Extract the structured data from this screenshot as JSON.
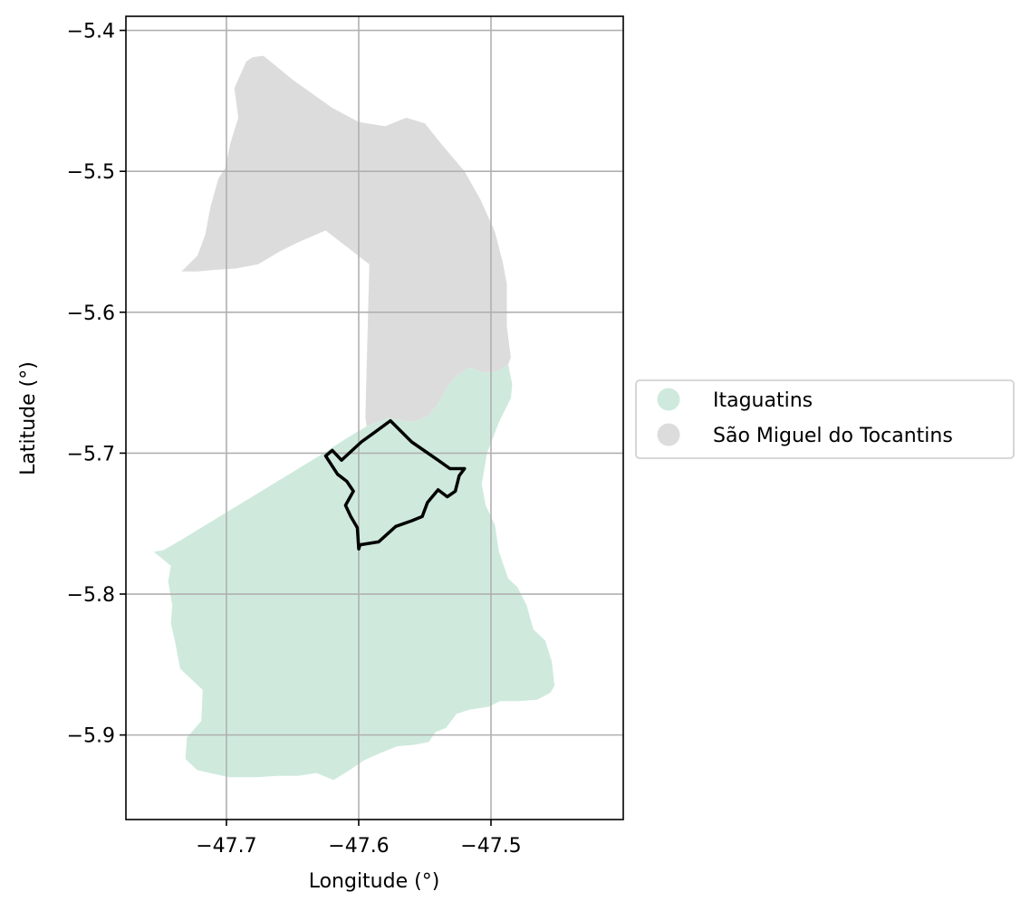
{
  "map": {
    "xlabel": "Longitude (°)",
    "ylabel": "Latitude (°)",
    "xlim": [
      -47.776,
      -47.4
    ],
    "ylim": [
      -5.96,
      -5.39
    ],
    "grid": true,
    "x_ticks": [
      {
        "value": -47.7,
        "label": "−47.7"
      },
      {
        "value": -47.6,
        "label": "−47.6"
      },
      {
        "value": -47.5,
        "label": "−47.5"
      }
    ],
    "y_ticks": [
      {
        "value": -5.4,
        "label": "−5.4"
      },
      {
        "value": -5.5,
        "label": "−5.5"
      },
      {
        "value": -5.6,
        "label": "−5.6"
      },
      {
        "value": -5.7,
        "label": "−5.7"
      },
      {
        "value": -5.8,
        "label": "−5.8"
      },
      {
        "value": -5.9,
        "label": "−5.9"
      }
    ],
    "legend_position": "center-right outside",
    "regions": [
      {
        "name": "Itaguatins",
        "color": "#cfeadd",
        "boundary": [
          [
            -47.755,
            -5.77
          ],
          [
            -47.748,
            -5.769
          ],
          [
            -47.735,
            -5.762
          ],
          [
            -47.7,
            -5.742
          ],
          [
            -47.665,
            -5.722
          ],
          [
            -47.63,
            -5.702
          ],
          [
            -47.61,
            -5.69
          ],
          [
            -47.594,
            -5.681
          ],
          [
            -47.578,
            -5.675
          ],
          [
            -47.56,
            -5.678
          ],
          [
            -47.548,
            -5.674
          ],
          [
            -47.54,
            -5.665
          ],
          [
            -47.533,
            -5.653
          ],
          [
            -47.526,
            -5.645
          ],
          [
            -47.516,
            -5.639
          ],
          [
            -47.505,
            -5.643
          ],
          [
            -47.495,
            -5.642
          ],
          [
            -47.487,
            -5.637
          ],
          [
            -47.484,
            -5.651
          ],
          [
            -47.485,
            -5.661
          ],
          [
            -47.494,
            -5.678
          ],
          [
            -47.503,
            -5.7
          ],
          [
            -47.507,
            -5.722
          ],
          [
            -47.504,
            -5.737
          ],
          [
            -47.497,
            -5.751
          ],
          [
            -47.494,
            -5.77
          ],
          [
            -47.487,
            -5.789
          ],
          [
            -47.48,
            -5.795
          ],
          [
            -47.473,
            -5.808
          ],
          [
            -47.468,
            -5.825
          ],
          [
            -47.459,
            -5.833
          ],
          [
            -47.454,
            -5.848
          ],
          [
            -47.452,
            -5.865
          ],
          [
            -47.455,
            -5.87
          ],
          [
            -47.465,
            -5.875
          ],
          [
            -47.48,
            -5.876
          ],
          [
            -47.493,
            -5.876
          ],
          [
            -47.502,
            -5.88
          ],
          [
            -47.516,
            -5.882
          ],
          [
            -47.526,
            -5.885
          ],
          [
            -47.534,
            -5.895
          ],
          [
            -47.542,
            -5.898
          ],
          [
            -47.547,
            -5.905
          ],
          [
            -47.558,
            -5.907
          ],
          [
            -47.571,
            -5.908
          ],
          [
            -47.584,
            -5.913
          ],
          [
            -47.596,
            -5.918
          ],
          [
            -47.607,
            -5.925
          ],
          [
            -47.619,
            -5.932
          ],
          [
            -47.632,
            -5.927
          ],
          [
            -47.646,
            -5.929
          ],
          [
            -47.661,
            -5.929
          ],
          [
            -47.677,
            -5.93
          ],
          [
            -47.698,
            -5.93
          ],
          [
            -47.722,
            -5.925
          ],
          [
            -47.731,
            -5.917
          ],
          [
            -47.73,
            -5.902
          ],
          [
            -47.719,
            -5.89
          ],
          [
            -47.718,
            -5.868
          ],
          [
            -47.735,
            -5.853
          ],
          [
            -47.739,
            -5.833
          ],
          [
            -47.742,
            -5.821
          ],
          [
            -47.741,
            -5.808
          ],
          [
            -47.744,
            -5.791
          ],
          [
            -47.742,
            -5.78
          ],
          [
            -47.755,
            -5.77
          ]
        ]
      },
      {
        "name": "São Miguel do Tocantins",
        "color": "#dcdcdc",
        "boundary": [
          [
            -47.734,
            -5.571
          ],
          [
            -47.722,
            -5.56
          ],
          [
            -47.716,
            -5.545
          ],
          [
            -47.712,
            -5.525
          ],
          [
            -47.706,
            -5.505
          ],
          [
            -47.701,
            -5.498
          ],
          [
            -47.697,
            -5.48
          ],
          [
            -47.691,
            -5.462
          ],
          [
            -47.694,
            -5.441
          ],
          [
            -47.685,
            -5.422
          ],
          [
            -47.68,
            -5.419
          ],
          [
            -47.672,
            -5.418
          ],
          [
            -47.65,
            -5.435
          ],
          [
            -47.62,
            -5.455
          ],
          [
            -47.6,
            -5.465
          ],
          [
            -47.58,
            -5.468
          ],
          [
            -47.564,
            -5.462
          ],
          [
            -47.55,
            -5.466
          ],
          [
            -47.538,
            -5.48
          ],
          [
            -47.52,
            -5.5
          ],
          [
            -47.508,
            -5.52
          ],
          [
            -47.497,
            -5.543
          ],
          [
            -47.491,
            -5.565
          ],
          [
            -47.488,
            -5.58
          ],
          [
            -47.488,
            -5.61
          ],
          [
            -47.485,
            -5.632
          ],
          [
            -47.487,
            -5.637
          ],
          [
            -47.495,
            -5.642
          ],
          [
            -47.505,
            -5.643
          ],
          [
            -47.516,
            -5.639
          ],
          [
            -47.526,
            -5.645
          ],
          [
            -47.533,
            -5.653
          ],
          [
            -47.54,
            -5.665
          ],
          [
            -47.548,
            -5.674
          ],
          [
            -47.56,
            -5.678
          ],
          [
            -47.578,
            -5.675
          ],
          [
            -47.594,
            -5.681
          ],
          [
            -47.595,
            -5.675
          ],
          [
            -47.592,
            -5.566
          ],
          [
            -47.625,
            -5.542
          ],
          [
            -47.645,
            -5.55
          ],
          [
            -47.66,
            -5.557
          ],
          [
            -47.676,
            -5.566
          ],
          [
            -47.693,
            -5.569
          ],
          [
            -47.71,
            -5.57
          ],
          [
            -47.722,
            -5.571
          ],
          [
            -47.734,
            -5.571
          ]
        ]
      }
    ],
    "outline": {
      "color": "#000000",
      "boundary": [
        [
          -47.625,
          -5.702
        ],
        [
          -47.62,
          -5.698
        ],
        [
          -47.613,
          -5.705
        ],
        [
          -47.598,
          -5.692
        ],
        [
          -47.589,
          -5.686
        ],
        [
          -47.576,
          -5.677
        ],
        [
          -47.56,
          -5.692
        ],
        [
          -47.54,
          -5.705
        ],
        [
          -47.531,
          -5.711
        ],
        [
          -47.52,
          -5.711
        ],
        [
          -47.524,
          -5.716
        ],
        [
          -47.527,
          -5.727
        ],
        [
          -47.533,
          -5.731
        ],
        [
          -47.54,
          -5.726
        ],
        [
          -47.548,
          -5.735
        ],
        [
          -47.552,
          -5.745
        ],
        [
          -47.56,
          -5.748
        ],
        [
          -47.572,
          -5.752
        ],
        [
          -47.585,
          -5.763
        ],
        [
          -47.599,
          -5.765
        ],
        [
          -47.6,
          -5.768
        ],
        [
          -47.601,
          -5.753
        ],
        [
          -47.606,
          -5.745
        ],
        [
          -47.61,
          -5.737
        ],
        [
          -47.604,
          -5.727
        ],
        [
          -47.609,
          -5.72
        ],
        [
          -47.616,
          -5.715
        ],
        [
          -47.625,
          -5.702
        ]
      ]
    },
    "legend": [
      {
        "label": "Itaguatins",
        "color": "#cfeadd"
      },
      {
        "label": "São Miguel do Tocantins",
        "color": "#dcdcdc"
      }
    ]
  }
}
